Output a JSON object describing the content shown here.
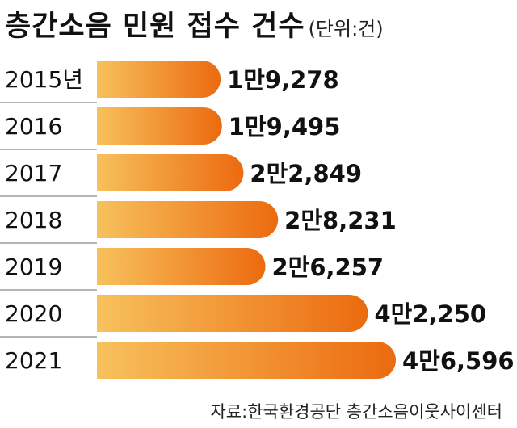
{
  "header": {
    "title": "층간소음 민원 접수 건수",
    "unit": "(단위:건)"
  },
  "footer": {
    "source": "자료:한국환경공단 층간소음이웃사이센터"
  },
  "colors": {
    "bar_start": "#f7c15c",
    "bar_end": "#ec6a0f",
    "divider": "#8a8a8a",
    "text": "#111111"
  },
  "chart_data": {
    "type": "bar",
    "orientation": "horizontal",
    "categories": [
      "2015년",
      "2016",
      "2017",
      "2018",
      "2019",
      "2020",
      "2021"
    ],
    "values": [
      19278,
      19495,
      22849,
      28231,
      26257,
      42250,
      46596
    ],
    "value_labels": [
      "1만9,278",
      "1만9,495",
      "2만2,849",
      "2만8,231",
      "2만6,257",
      "4만2,250",
      "4만6,596"
    ],
    "title": "층간소음 민원 접수 건수",
    "unit": "(단위:건)"
  }
}
